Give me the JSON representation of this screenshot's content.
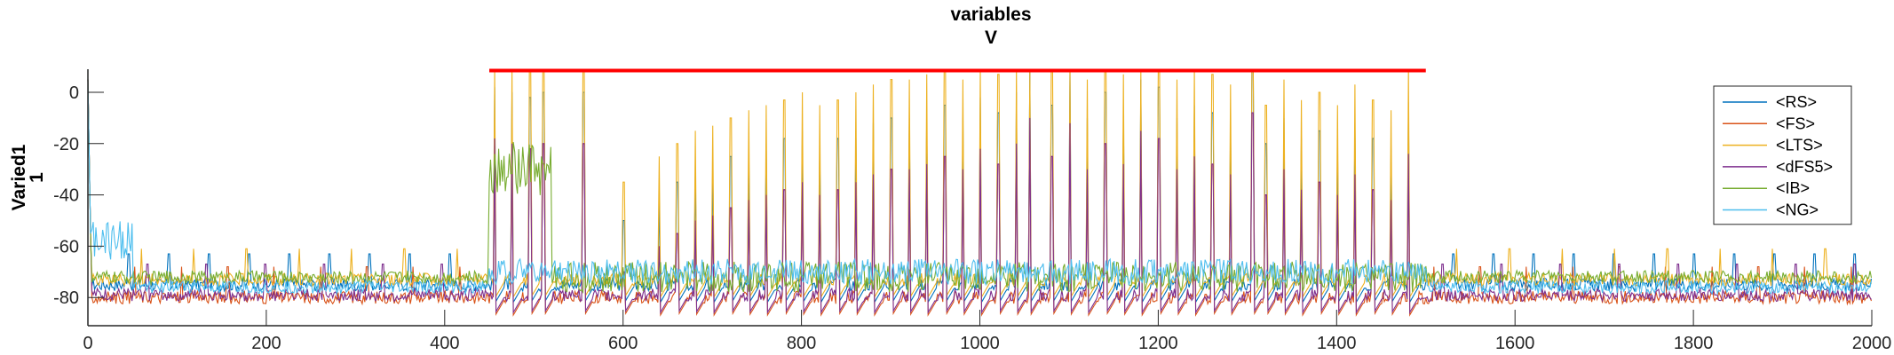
{
  "chart_data": {
    "type": "line",
    "title": "variables",
    "subtitle": "V",
    "ylabel": "Varied1",
    "ylabel2": "1",
    "xlim": [
      0,
      2000
    ],
    "ylim": [
      -91,
      9
    ],
    "xticks": [
      "0",
      "200",
      "400",
      "600",
      "800",
      "1000",
      "1200",
      "1400",
      "1600",
      "1800",
      "2000"
    ],
    "xtick_values": [
      0,
      200,
      400,
      600,
      800,
      1000,
      1200,
      1400,
      1600,
      1800,
      2000
    ],
    "yticks": [
      "0",
      "-20",
      "-40",
      "-60",
      "-80"
    ],
    "ytick_values": [
      0,
      -20,
      -40,
      -60,
      -80
    ],
    "grid": false,
    "legend_position": "top-right",
    "stimulus_bar": {
      "x_start": 450,
      "x_end": 1500,
      "y": 8.5,
      "color": "#ff0000"
    },
    "spike_times": [
      455,
      475,
      495,
      510,
      555,
      600,
      640,
      660,
      680,
      700,
      720,
      740,
      760,
      780,
      800,
      820,
      840,
      860,
      880,
      900,
      920,
      940,
      960,
      980,
      1000,
      1020,
      1040,
      1055,
      1080,
      1100,
      1120,
      1140,
      1160,
      1180,
      1200,
      1220,
      1240,
      1260,
      1280,
      1305,
      1320,
      1340,
      1360,
      1380,
      1400,
      1420,
      1440,
      1460,
      1480
    ],
    "spike_peaks": [
      -18,
      -20,
      -22,
      -20,
      -20,
      -70,
      -60,
      -55,
      -50,
      -48,
      -45,
      -42,
      -40,
      -38,
      -35,
      -40,
      -38,
      -35,
      -32,
      -30,
      -30,
      -28,
      -25,
      -30,
      -22,
      -28,
      -20,
      -10,
      -25,
      -12,
      -30,
      -20,
      -28,
      -15,
      -18,
      -30,
      -25,
      -28,
      -32,
      -8,
      -40,
      -30,
      -38,
      -35,
      -40,
      -32,
      -38,
      -42,
      -24
    ],
    "series": [
      {
        "name": "<RS>",
        "color": "#0072bd",
        "baseline": -75
      },
      {
        "name": "<FS>",
        "color": "#d95319",
        "baseline": -80
      },
      {
        "name": "<LTS>",
        "color": "#edb120",
        "baseline": -73
      },
      {
        "name": "<dFS5>",
        "color": "#7e2f8e",
        "baseline": -79
      },
      {
        "name": "<IB>",
        "color": "#77ac30",
        "baseline": -72
      },
      {
        "name": "<NG>",
        "color": "#4dbeee",
        "baseline": -76
      }
    ]
  }
}
